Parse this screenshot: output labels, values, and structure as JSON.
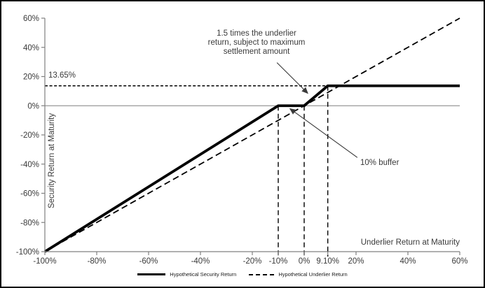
{
  "chart_data": {
    "type": "line",
    "title": "",
    "xlabel": "Underlier Return at Maturity",
    "ylabel": "Security Return at Maturity",
    "xlim": [
      -100,
      60
    ],
    "ylim": [
      -100,
      60
    ],
    "grid": false,
    "legend_position": "bottom-center",
    "colors": {
      "series": "#000000",
      "axis": "#808080",
      "text": "#3a3a3a",
      "zero_line": "#808080"
    },
    "x_ticks": [
      {
        "v": -100,
        "label": "-100%"
      },
      {
        "v": -80,
        "label": "-80%"
      },
      {
        "v": -60,
        "label": "-60%"
      },
      {
        "v": -40,
        "label": "-40%"
      },
      {
        "v": -20,
        "label": "-20%"
      },
      {
        "v": -10,
        "label": "-10%"
      },
      {
        "v": 0,
        "label": "0%"
      },
      {
        "v": 9.1,
        "label": "9.10%"
      },
      {
        "v": 20,
        "label": "20%"
      },
      {
        "v": 40,
        "label": "40%"
      },
      {
        "v": 60,
        "label": "60%"
      }
    ],
    "y_ticks": [
      {
        "v": 60,
        "label": "60%"
      },
      {
        "v": 40,
        "label": "40%"
      },
      {
        "v": 20,
        "label": "20%"
      },
      {
        "v": 0,
        "label": "0%"
      },
      {
        "v": -20,
        "label": "-20%"
      },
      {
        "v": -40,
        "label": "-40%"
      },
      {
        "v": -60,
        "label": "-60%"
      },
      {
        "v": -80,
        "label": "-80%"
      },
      {
        "v": -100,
        "label": "-100%"
      }
    ],
    "series": [
      {
        "name": "Hypothetical Security Return",
        "line_style": "solid",
        "stroke_width": 3.8,
        "color": "#000000",
        "points": [
          [
            -100,
            -100
          ],
          [
            -10,
            0
          ],
          [
            0,
            0
          ],
          [
            9.1,
            13.65
          ],
          [
            60,
            13.65
          ]
        ]
      },
      {
        "name": "Hypothetical Underlier Return",
        "line_style": "dashed",
        "stroke_width": 1.8,
        "color": "#000000",
        "points": [
          [
            -100,
            -100
          ],
          [
            60,
            60
          ]
        ]
      }
    ],
    "reference_lines": {
      "max_settlement": {
        "y": 13.65,
        "style": "dotted",
        "label": "13.65%"
      },
      "zero": {
        "y": 0,
        "style": "solid-thin"
      },
      "verticals": [
        {
          "x": -10,
          "y_top": 0
        },
        {
          "x": 0,
          "y_top": 0
        },
        {
          "x": 9.1,
          "y_top": 13.65
        }
      ]
    },
    "annotations": [
      {
        "id": "leverage-note",
        "lines": [
          "1.5 times the underlier",
          "return, subject to maximum",
          "settlement amount"
        ],
        "arrow": {
          "from": [
            -10.5,
            29.5
          ],
          "to": [
            1.4,
            8.5
          ]
        }
      },
      {
        "id": "buffer-note",
        "text": "10% buffer",
        "arrow": {
          "from": [
            20.5,
            -35.5
          ],
          "to": [
            -5.5,
            -2.0
          ]
        }
      }
    ],
    "legend": [
      {
        "label": "Hypothetical Security Return",
        "line_style": "solid"
      },
      {
        "label": "Hypothetical Underlier Return",
        "line_style": "dashed"
      }
    ]
  }
}
